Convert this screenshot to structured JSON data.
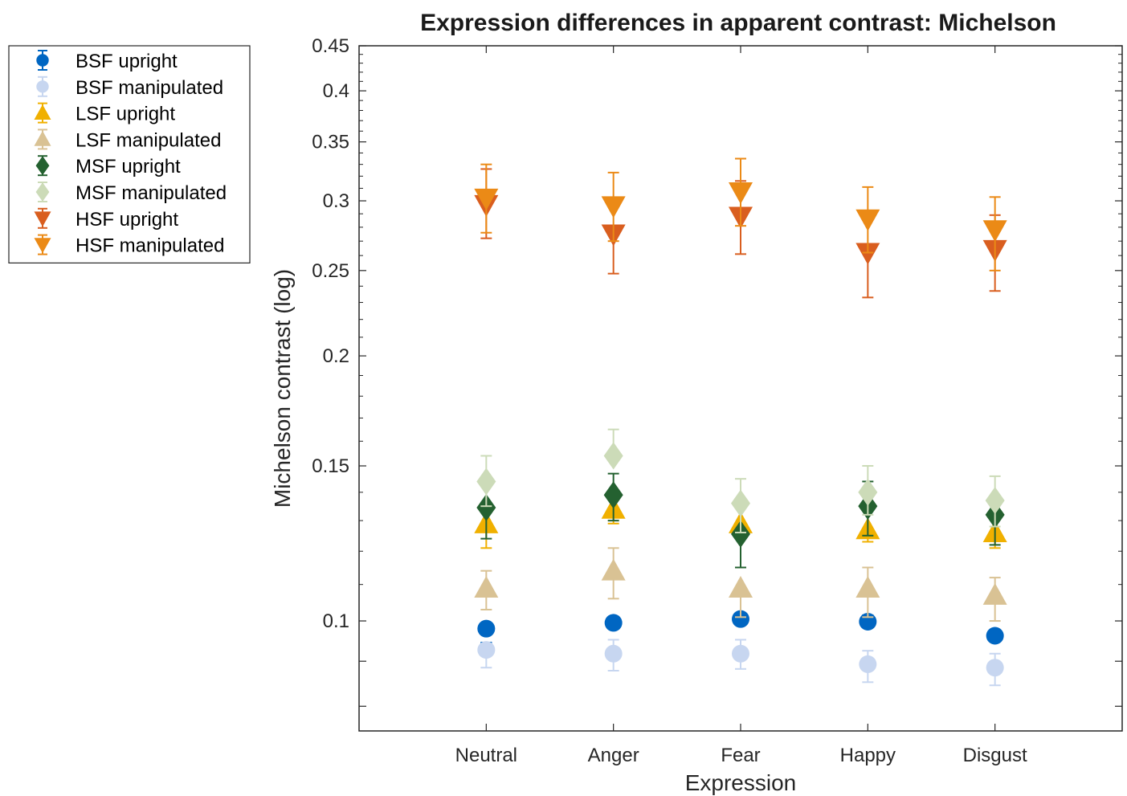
{
  "chart_data": {
    "type": "scatter",
    "title": "Expression differences in apparent contrast: Michelson",
    "xlabel": "Expression",
    "ylabel": "Michelson contrast (log)",
    "yscale": "log",
    "ylim": [
      0.075,
      0.45
    ],
    "yticks": [
      {
        "value": 0.1,
        "label": "0.1"
      },
      {
        "value": 0.15,
        "label": "0.15"
      },
      {
        "value": 0.2,
        "label": "0.2"
      },
      {
        "value": 0.25,
        "label": "0.25"
      },
      {
        "value": 0.3,
        "label": "0.3"
      },
      {
        "value": 0.35,
        "label": "0.35"
      },
      {
        "value": 0.4,
        "label": "0.4"
      },
      {
        "value": 0.45,
        "label": "0.45"
      }
    ],
    "categories": [
      "Neutral",
      "Anger",
      "Fear",
      "Happy",
      "Disgust"
    ],
    "grid": false,
    "legend_position": "outside-top-left",
    "series": [
      {
        "name": "BSF upright",
        "marker": "circle",
        "color": "#0066C2",
        "values": [
          0.098,
          0.0995,
          0.1005,
          0.0998,
          0.0962
        ],
        "err_low": [
          0.0945,
          0.0995,
          0.1005,
          0.1015,
          0.0962
        ],
        "err_high": [
          0.0945,
          0.0995,
          0.1005,
          0.1015,
          0.0962
        ]
      },
      {
        "name": "BSF manipulated",
        "marker": "circle",
        "color": "#C7D6F0",
        "values": [
          0.0927,
          0.0918,
          0.0918,
          0.0893,
          0.0885
        ],
        "err_low": [
          0.0885,
          0.0878,
          0.0882,
          0.0852,
          0.0845
        ],
        "err_high": [
          0.0927,
          0.0952,
          0.0952,
          0.0925,
          0.0918
        ]
      },
      {
        "name": "LSF upright",
        "marker": "triangle-up",
        "color": "#F0B000",
        "values": [
          0.129,
          0.134,
          0.129,
          0.127,
          0.126
        ],
        "err_low": [
          0.121,
          0.129,
          0.129,
          0.123,
          0.121
        ],
        "err_high": [
          0.129,
          0.139,
          0.129,
          0.127,
          0.126
        ]
      },
      {
        "name": "LSF manipulated",
        "marker": "triangle-up",
        "color": "#D9C294",
        "values": [
          0.109,
          0.114,
          0.109,
          0.109,
          0.107
        ],
        "err_low": [
          0.103,
          0.106,
          0.101,
          0.101,
          0.1
        ],
        "err_high": [
          0.114,
          0.121,
          0.109,
          0.115,
          0.112
        ]
      },
      {
        "name": "MSF upright",
        "marker": "diamond",
        "color": "#246130",
        "values": [
          0.1345,
          0.139,
          0.1255,
          0.135,
          0.132
        ],
        "err_low": [
          0.124,
          0.13,
          0.115,
          0.125,
          0.122
        ],
        "err_high": [
          0.1345,
          0.147,
          0.1255,
          0.144,
          0.1375
        ]
      },
      {
        "name": "MSF manipulated",
        "marker": "diamond",
        "color": "#CCDBB8",
        "values": [
          0.144,
          0.154,
          0.136,
          0.14,
          0.137
        ],
        "err_low": [
          0.135,
          0.154,
          0.126,
          0.132,
          0.128
        ],
        "err_high": [
          0.154,
          0.165,
          0.145,
          0.15,
          0.146
        ]
      },
      {
        "name": "HSF upright",
        "marker": "triangle-down",
        "color": "#D95E1F",
        "values": [
          0.297,
          0.275,
          0.288,
          0.262,
          0.264
        ],
        "err_low": [
          0.272,
          0.248,
          0.261,
          0.233,
          0.237
        ],
        "err_high": [
          0.326,
          0.275,
          0.316,
          0.262,
          0.289
        ]
      },
      {
        "name": "HSF manipulated",
        "marker": "triangle-down",
        "color": "#EB8A16",
        "values": [
          0.302,
          0.296,
          0.307,
          0.286,
          0.278
        ],
        "err_low": [
          0.276,
          0.27,
          0.281,
          0.262,
          0.25
        ],
        "err_high": [
          0.33,
          0.323,
          0.335,
          0.311,
          0.303
        ]
      }
    ]
  }
}
